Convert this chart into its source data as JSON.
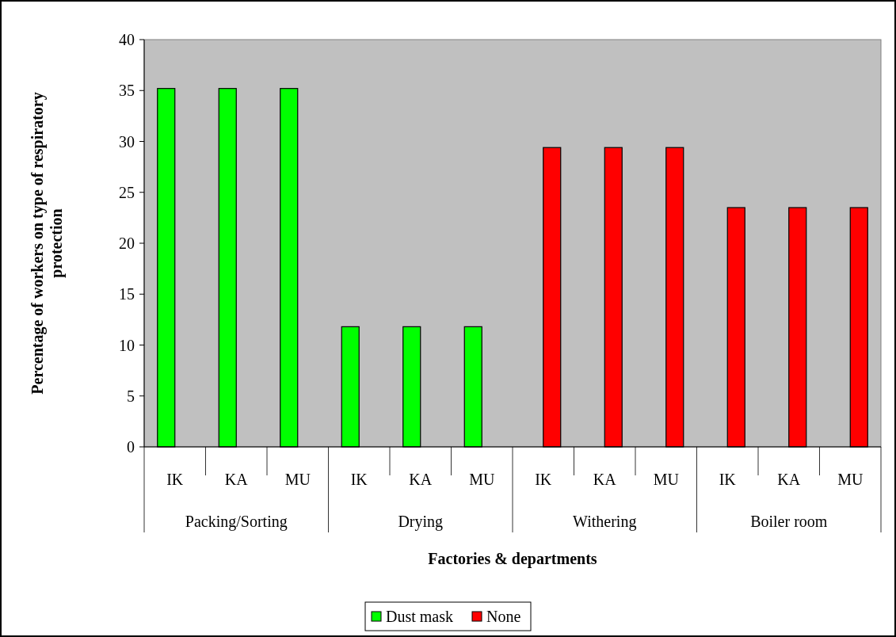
{
  "chart_data": {
    "type": "bar",
    "xlabel": "Factories & departments",
    "ylabel": "Percentage of workers on type of respiratory protection",
    "categories": [
      "IK",
      "KA",
      "MU",
      "IK",
      "KA",
      "MU",
      "IK",
      "KA",
      "MU",
      "IK",
      "KA",
      "MU"
    ],
    "annotations": [
      "Packing/Sorting",
      "Drying",
      "Withering",
      "Boiler room"
    ],
    "series": [
      {
        "name": "Dust mask",
        "color": "#00ff00",
        "values": [
          35.2,
          35.2,
          35.2,
          11.8,
          11.8,
          11.8,
          null,
          null,
          null,
          null,
          null,
          null
        ]
      },
      {
        "name": "None",
        "color": "#ff0000",
        "values": [
          null,
          null,
          null,
          null,
          null,
          null,
          29.4,
          29.4,
          29.4,
          23.5,
          23.5,
          23.5
        ]
      }
    ],
    "ylim": [
      0,
      40
    ],
    "yticks": [
      0,
      5,
      10,
      15,
      20,
      25,
      30,
      35,
      40
    ],
    "grid": false,
    "legend": "bottom"
  }
}
